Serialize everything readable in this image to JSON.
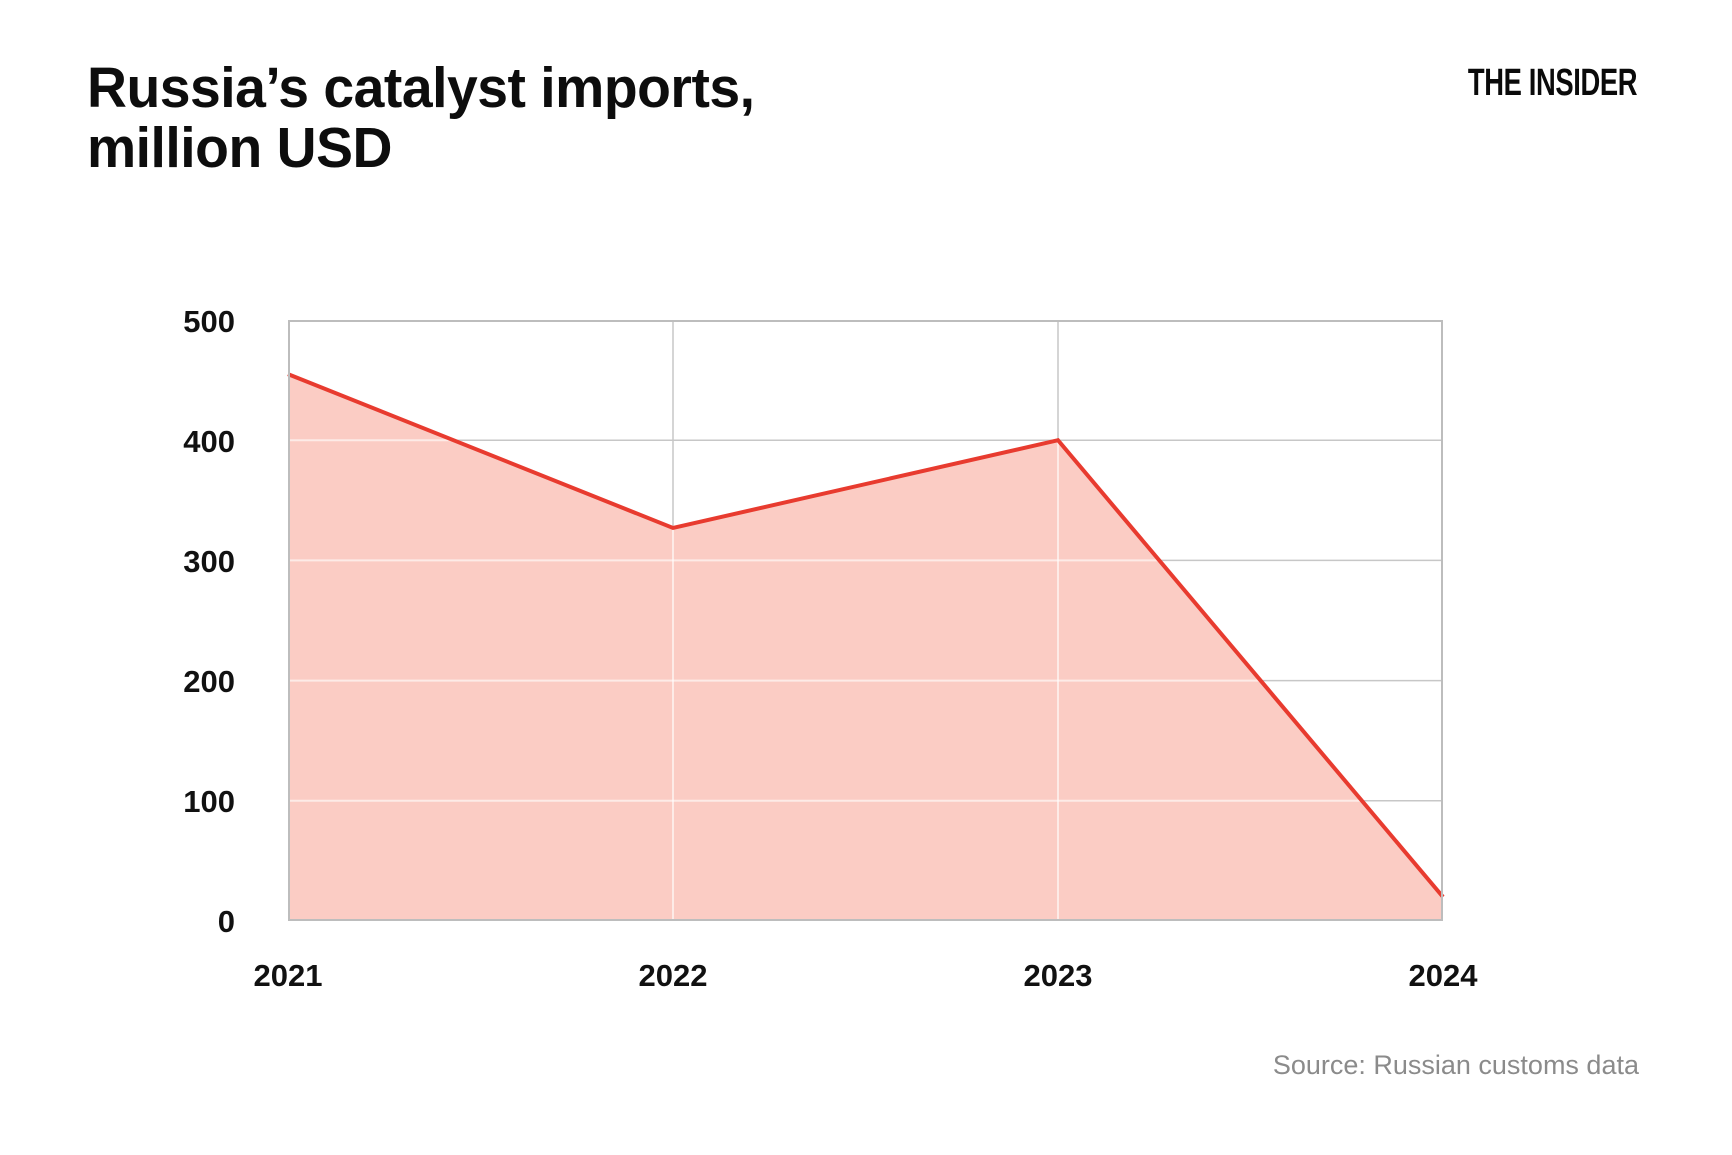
{
  "header": {
    "title": "Russia’s catalyst imports,\nmillion USD",
    "logo": "THE INSIDER"
  },
  "footer": {
    "source": "Source: Russian customs data"
  },
  "chart_data": {
    "type": "area",
    "categories": [
      "2021",
      "2022",
      "2023",
      "2024"
    ],
    "values": [
      455,
      327,
      400,
      20
    ],
    "title": "Russia’s catalyst imports, million USD",
    "xlabel": "",
    "ylabel": "",
    "ylim": [
      0,
      500
    ],
    "ytick_values": [
      500,
      400,
      300,
      200,
      100,
      0
    ],
    "ytick_labels": [
      "500",
      "400",
      "300",
      "200",
      "100",
      "0"
    ],
    "grid": true,
    "legend": "none",
    "colors": {
      "line": "#e83b2f",
      "fill": "#fbccc4",
      "grid": "#c7c7c7",
      "border": "#bdbdbd",
      "grid_over_fill": "rgba(255,255,255,0.6)",
      "title_text": "#0d0d0d",
      "source_text": "#8b8b8b"
    }
  }
}
